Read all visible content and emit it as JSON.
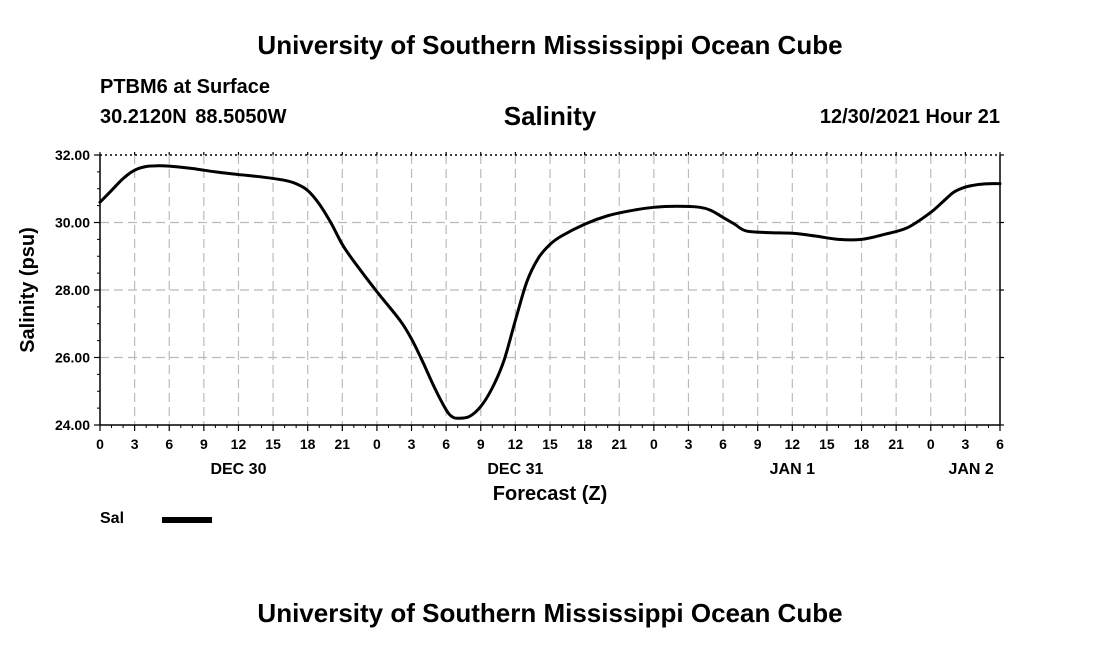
{
  "header": {
    "org_title": "University of Southern Mississippi Ocean Cube",
    "station": "PTBM6 at Surface",
    "coords": "30.2120N  88.5050W",
    "chart_title": "Salinity",
    "datetime": "12/30/2021 Hour 21"
  },
  "legend": {
    "label": "Sal"
  },
  "footer": {
    "org_title": "University of Southern Mississippi Ocean Cube"
  },
  "colors": {
    "line": "#000000",
    "grid": "#bbbbbb",
    "background": "#ffffff"
  },
  "chart_data": {
    "type": "line",
    "title": "Salinity",
    "xlabel": "Forecast (Z)",
    "ylabel": "Salinity (psu)",
    "ylim": [
      24,
      32
    ],
    "yticks": [
      "24.00",
      "26.00",
      "28.00",
      "30.00",
      "32.00"
    ],
    "xlim": [
      0,
      78
    ],
    "xtick_labels": [
      "0",
      "3",
      "6",
      "9",
      "12",
      "15",
      "18",
      "21",
      "0",
      "3",
      "6",
      "9",
      "12",
      "15",
      "18",
      "21",
      "0",
      "3",
      "6",
      "9",
      "12",
      "15",
      "18",
      "21",
      "0",
      "3",
      "6"
    ],
    "day_labels": [
      {
        "label": "DEC 30",
        "hour": 12
      },
      {
        "label": "DEC 31",
        "hour": 36
      },
      {
        "label": "JAN 1",
        "hour": 60
      },
      {
        "label": "JAN 2",
        "hour": 75.5
      }
    ],
    "grid": true,
    "series": [
      {
        "name": "Sal",
        "x": [
          0,
          1,
          2,
          3,
          4,
          5,
          6,
          8,
          10,
          12,
          14,
          16,
          17,
          18,
          19,
          20,
          21,
          22,
          24,
          26,
          27,
          28,
          29,
          30,
          30.5,
          31,
          32,
          33,
          34,
          35,
          36,
          37,
          38,
          39,
          40,
          42,
          44,
          46,
          48,
          50,
          52,
          53,
          54,
          55,
          56,
          58,
          60,
          62,
          64,
          66,
          68,
          70,
          72,
          73,
          74,
          75,
          76,
          77,
          78
        ],
        "y": [
          30.6,
          30.95,
          31.3,
          31.55,
          31.66,
          31.68,
          31.67,
          31.6,
          31.5,
          31.42,
          31.35,
          31.25,
          31.15,
          30.95,
          30.55,
          30.0,
          29.35,
          28.85,
          27.95,
          27.1,
          26.55,
          25.85,
          25.1,
          24.45,
          24.25,
          24.2,
          24.25,
          24.55,
          25.1,
          25.9,
          27.1,
          28.25,
          28.95,
          29.35,
          29.6,
          29.95,
          30.2,
          30.35,
          30.45,
          30.48,
          30.45,
          30.35,
          30.15,
          29.95,
          29.75,
          29.7,
          29.68,
          29.6,
          29.5,
          29.5,
          29.65,
          29.85,
          30.3,
          30.6,
          30.9,
          31.05,
          31.12,
          31.15,
          31.15
        ]
      }
    ]
  }
}
